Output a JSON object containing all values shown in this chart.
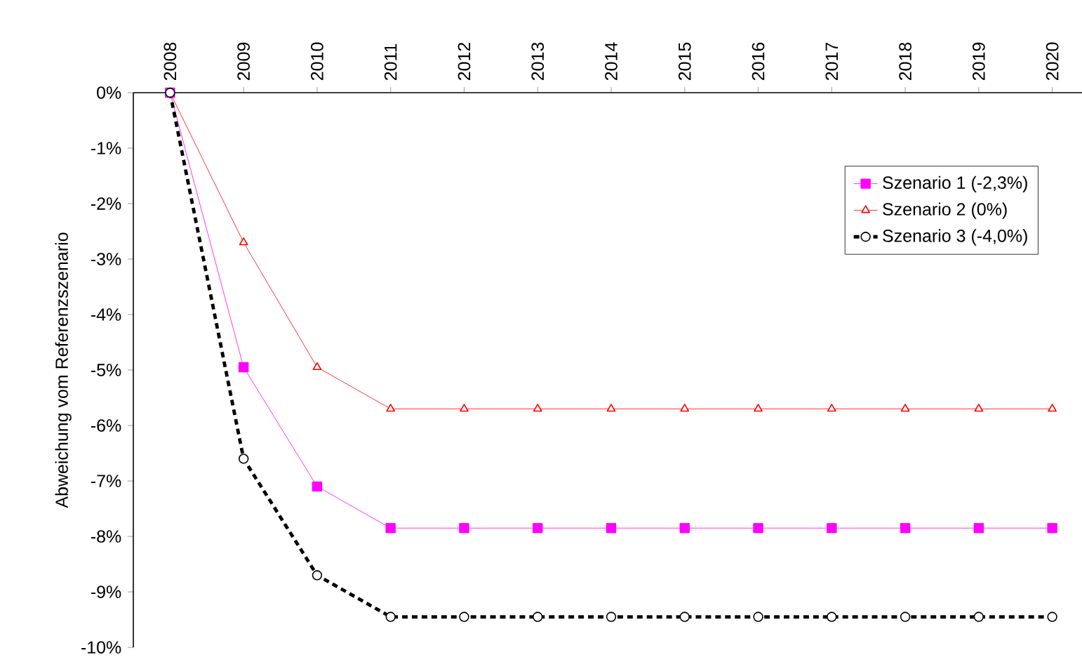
{
  "chart_data": {
    "type": "line",
    "ylabel": "Abweichung vom Referenzszenario",
    "categories": [
      "2008",
      "2009",
      "2010",
      "2011",
      "2012",
      "2013",
      "2014",
      "2015",
      "2016",
      "2017",
      "2018",
      "2019",
      "2020"
    ],
    "ylim": [
      -10,
      0
    ],
    "yticks": [
      {
        "value": 0,
        "label": "0%"
      },
      {
        "value": -1,
        "label": "-1%"
      },
      {
        "value": -2,
        "label": "-2%"
      },
      {
        "value": -3,
        "label": "-3%"
      },
      {
        "value": -4,
        "label": "-4%"
      },
      {
        "value": -5,
        "label": "-5%"
      },
      {
        "value": -6,
        "label": "-6%"
      },
      {
        "value": -7,
        "label": "-7%"
      },
      {
        "value": -8,
        "label": "-8%"
      },
      {
        "value": -9,
        "label": "-9%"
      },
      {
        "value": -10,
        "label": "-10%"
      }
    ],
    "legend": "top right",
    "grid": false,
    "series": [
      {
        "name": "Szenario 1 (-2,3%)",
        "color": "#ff00ff",
        "marker": "square",
        "line_style": "solid",
        "values": [
          0,
          -4.95,
          -7.1,
          -7.85,
          -7.85,
          -7.85,
          -7.85,
          -7.85,
          -7.85,
          -7.85,
          -7.85,
          -7.85,
          -7.85
        ]
      },
      {
        "name": "Szenario 2 (0%)",
        "color": "#ff0000",
        "marker": "triangle",
        "line_style": "solid",
        "values": [
          0,
          -2.7,
          -4.95,
          -5.7,
          -5.7,
          -5.7,
          -5.7,
          -5.7,
          -5.7,
          -5.7,
          -5.7,
          -5.7,
          -5.7
        ]
      },
      {
        "name": "Szenario 3 (-4,0%)",
        "color": "#000000",
        "marker": "circle",
        "line_style": "dotted",
        "values": [
          0,
          -6.6,
          -8.7,
          -9.45,
          -9.45,
          -9.45,
          -9.45,
          -9.45,
          -9.45,
          -9.45,
          -9.45,
          -9.45,
          -9.45
        ]
      }
    ]
  }
}
